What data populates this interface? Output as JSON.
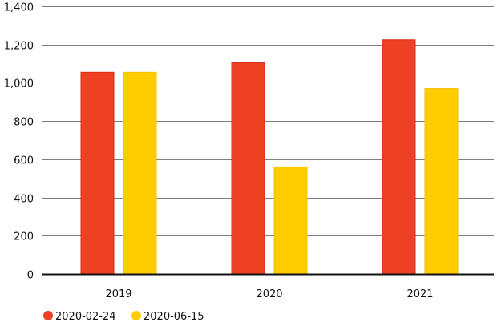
{
  "chart_data": {
    "type": "bar",
    "title": "",
    "xlabel": "",
    "ylabel": "",
    "categories": [
      "2019",
      "2020",
      "2021"
    ],
    "series": [
      {
        "name": "2020-02-24",
        "color": "#ee4124",
        "values": [
          1055,
          1105,
          1225
        ]
      },
      {
        "name": "2020-06-15",
        "color": "#ffcc00",
        "values": [
          1055,
          560,
          970
        ]
      }
    ],
    "ylim": [
      0,
      1400
    ],
    "yticks": [
      0,
      200,
      400,
      600,
      800,
      1000,
      1200,
      1400
    ],
    "ytick_labels": [
      "0",
      "200",
      "400",
      "600",
      "800",
      "1,000",
      "1,200",
      "1,400"
    ],
    "grid": true,
    "legend_position": "bottom-left"
  }
}
